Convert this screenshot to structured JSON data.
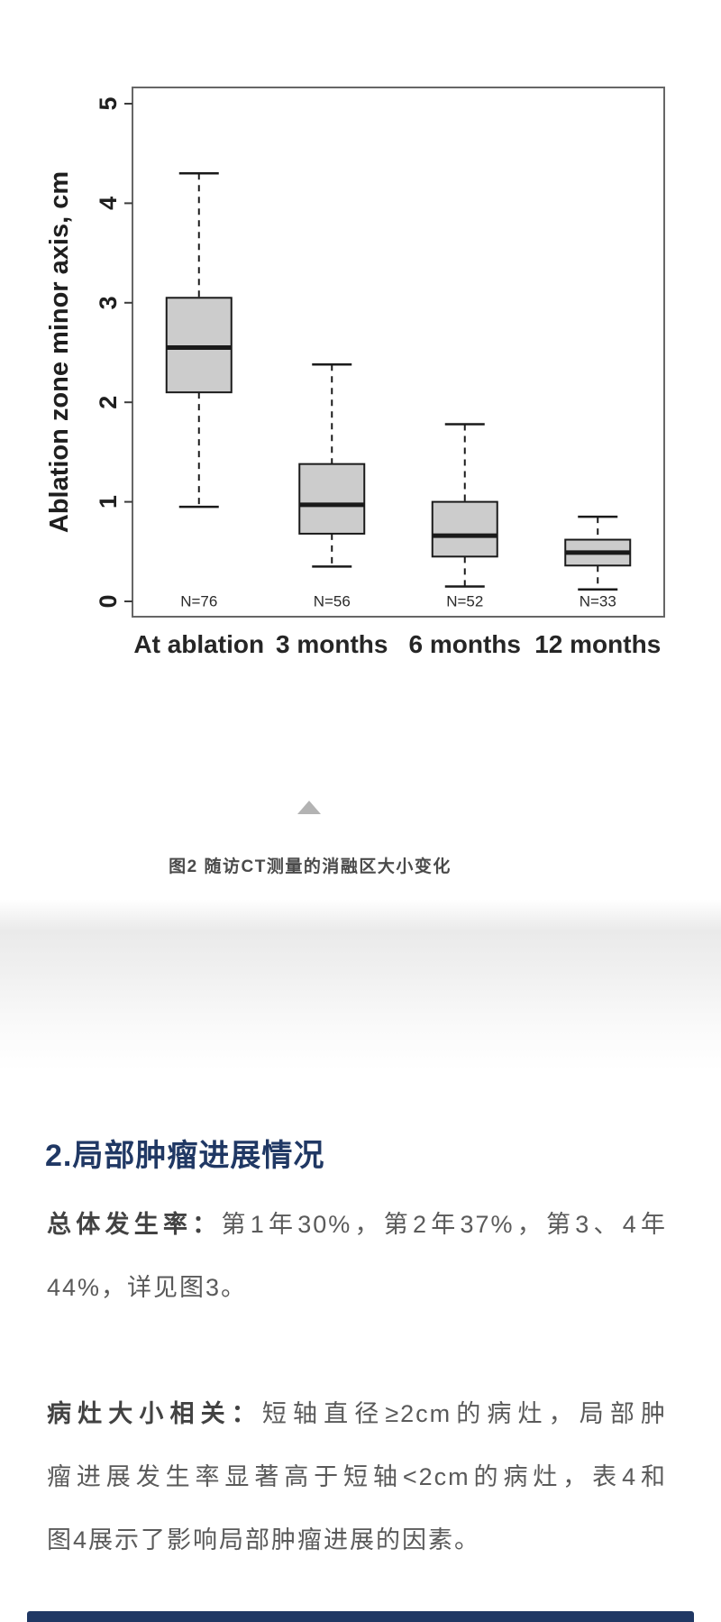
{
  "chart_data": {
    "type": "boxplot",
    "title": "",
    "ylabel": "Ablation zone minor axis, cm",
    "ylim": [
      0,
      5
    ],
    "yticks": [
      0,
      1,
      2,
      3,
      4,
      5
    ],
    "grid": false,
    "categories": [
      "At ablation",
      "3 months",
      "6 months",
      "12 months"
    ],
    "n_labels": [
      "N=76",
      "N=56",
      "N=52",
      "N=33"
    ],
    "series": [
      {
        "name": "At ablation",
        "n": 76,
        "min": 0.95,
        "q1": 2.1,
        "median": 2.55,
        "q3": 3.05,
        "max": 4.3
      },
      {
        "name": "3 months",
        "n": 56,
        "min": 0.35,
        "q1": 0.68,
        "median": 0.97,
        "q3": 1.38,
        "max": 2.38
      },
      {
        "name": "6 months",
        "n": 52,
        "min": 0.15,
        "q1": 0.45,
        "median": 0.66,
        "q3": 1.0,
        "max": 1.78
      },
      {
        "name": "12 months",
        "n": 33,
        "min": 0.12,
        "q1": 0.36,
        "median": 0.49,
        "q3": 0.62,
        "max": 0.85
      }
    ],
    "box_fill": "#cccccc",
    "line_color": "#1a1a1a",
    "frame_color": "#666666",
    "n_label_color": "#2b2b2b"
  },
  "figure": {
    "caption": "图2  随访CT测量的消融区大小变化",
    "collapse_icon": "triangle-up-icon"
  },
  "section": {
    "heading": "2.局部肿瘤进展情况",
    "heading_color": "#203864",
    "body_color": "#5a5a5a",
    "paragraphs": [
      {
        "lead": "总体发生率：",
        "lines": [
          "第1年30%，第2年37%，第3、4年",
          "44%，详见图3。"
        ]
      },
      {
        "lead": "病灶大小相关：",
        "lines": [
          "短轴直径≥2cm的病灶，局部肿",
          "瘤进展发生率显著高于短轴<2cm的病灶，表4和",
          "图4展示了影响局部肿瘤进展的因素。"
        ]
      }
    ]
  },
  "accent_bar_color": "#203864"
}
